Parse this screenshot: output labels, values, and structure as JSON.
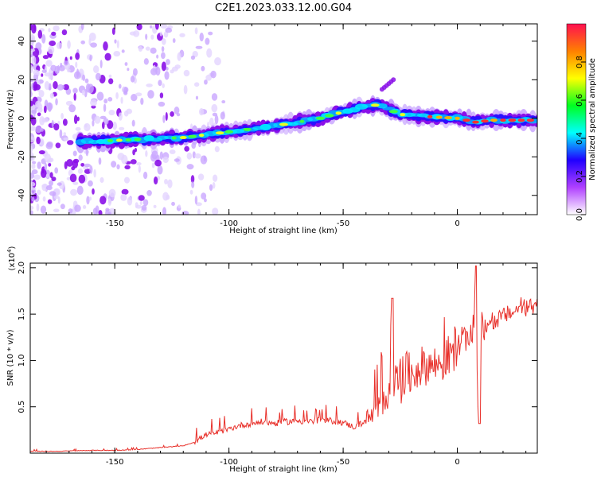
{
  "title": "C2E1.2023.033.12.00.G04",
  "chart_data": [
    {
      "type": "heatmap",
      "xlabel": "Height of straight line (km)",
      "ylabel": "Frequency (Hz)",
      "xlim": [
        -187,
        35
      ],
      "ylim": [
        -50,
        49
      ],
      "xticks": [
        -150,
        -100,
        -50,
        0
      ],
      "yticks": [
        -40,
        -20,
        0,
        20,
        40
      ],
      "colorbar": {
        "label": "Normalized spectral amplitude",
        "range": [
          0,
          1
        ],
        "ticks": [
          0.0,
          0.2,
          0.4,
          0.6,
          0.8
        ],
        "stops": [
          "#ffffff",
          "#b040ff",
          "#2000ff",
          "#00ffff",
          "#00ff20",
          "#ffff00",
          "#ff8000",
          "#ff1050"
        ]
      },
      "ridge": {
        "x": [
          -160,
          -140,
          -120,
          -100,
          -80,
          -60,
          -45,
          -35,
          -25,
          -15,
          0,
          8,
          15,
          33
        ],
        "y": [
          -12,
          -11,
          -10,
          -7,
          -4,
          0,
          5,
          7,
          2,
          1,
          0,
          -2,
          -1,
          -1
        ]
      },
      "spur": {
        "x": [
          -33,
          -28
        ],
        "y": [
          15,
          20
        ]
      }
    },
    {
      "type": "line",
      "xlabel": "Height of straight line (km)",
      "ylabel": "SNR (10 * v/v)",
      "multiplier": "(x10",
      "multiplier_exp": "4",
      "multiplier_close": ")",
      "xlim": [
        -187,
        35
      ],
      "ylim": [
        0,
        2.05
      ],
      "xticks": [
        -150,
        -100,
        -50,
        0
      ],
      "yticks": [
        0.5,
        1.0,
        1.5,
        2.0
      ],
      "yticklabels": [
        "0.5",
        "1.0",
        "1.5",
        "2.0"
      ],
      "series": [
        {
          "color": "#e8302a",
          "x": [
            -187,
            -175,
            -160,
            -150,
            -140,
            -130,
            -120,
            -115,
            -110,
            -105,
            -100,
            -95,
            -90,
            -85,
            -80,
            -75,
            -70,
            -65,
            -60,
            -55,
            -50,
            -45,
            -40,
            -35,
            -30,
            -28,
            -25,
            -22,
            -20,
            -15,
            -10,
            -5,
            0,
            3,
            5,
            7,
            8,
            9,
            10,
            12,
            15,
            20,
            25,
            30,
            35
          ],
          "y": [
            0.02,
            0.02,
            0.03,
            0.03,
            0.04,
            0.06,
            0.08,
            0.12,
            0.2,
            0.22,
            0.26,
            0.3,
            0.32,
            0.34,
            0.32,
            0.34,
            0.35,
            0.34,
            0.35,
            0.35,
            0.33,
            0.28,
            0.35,
            0.45,
            0.7,
            0.8,
            0.75,
            0.85,
            0.85,
            0.95,
            0.95,
            1.0,
            1.17,
            1.2,
            1.25,
            1.28,
            1.8,
            0.5,
            1.3,
            1.35,
            1.4,
            1.48,
            1.53,
            1.57,
            1.6
          ]
        }
      ]
    }
  ]
}
